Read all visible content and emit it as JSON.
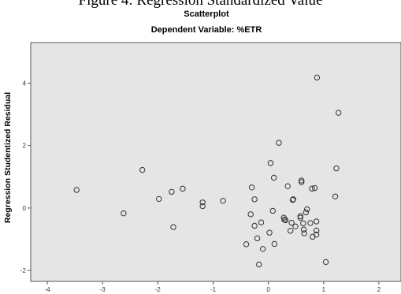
{
  "figure_caption": "Figure 4: Regression Standardized Value",
  "chart_data": {
    "type": "scatter",
    "title": "Scatterplot",
    "subtitle": "Dependent Variable: %ETR",
    "xlabel": "",
    "ylabel": "Regression Studentized Residual",
    "xlim": [
      -4.3,
      2.4
    ],
    "ylim": [
      -2.35,
      5.3
    ],
    "x_ticks": [
      -4,
      -3,
      -2,
      -1,
      0,
      1,
      2
    ],
    "y_ticks": [
      -2,
      0,
      2,
      4
    ],
    "grid": false,
    "colors": {
      "plot_background": "#e5e5e5",
      "marker": "#333333"
    },
    "points": [
      [
        -3.47,
        0.58
      ],
      [
        -2.62,
        -0.17
      ],
      [
        -2.28,
        1.22
      ],
      [
        -1.98,
        0.29
      ],
      [
        -1.75,
        0.52
      ],
      [
        -1.72,
        -0.61
      ],
      [
        -1.55,
        0.62
      ],
      [
        -1.19,
        0.18
      ],
      [
        -1.19,
        0.06
      ],
      [
        -0.82,
        0.23
      ],
      [
        -0.4,
        -1.16
      ],
      [
        -0.32,
        -0.2
      ],
      [
        -0.3,
        0.66
      ],
      [
        -0.25,
        0.28
      ],
      [
        -0.25,
        -0.57
      ],
      [
        -0.2,
        -0.97
      ],
      [
        -0.17,
        -1.81
      ],
      [
        -0.13,
        -0.46
      ],
      [
        -0.1,
        -1.31
      ],
      [
        0.02,
        -0.79
      ],
      [
        0.04,
        1.44
      ],
      [
        0.08,
        -0.09
      ],
      [
        0.1,
        0.97
      ],
      [
        0.11,
        -1.15
      ],
      [
        0.19,
        2.09
      ],
      [
        0.28,
        -0.31
      ],
      [
        0.29,
        -0.37
      ],
      [
        0.31,
        -0.39
      ],
      [
        0.35,
        0.7
      ],
      [
        0.4,
        -0.73
      ],
      [
        0.42,
        -0.47
      ],
      [
        0.44,
        0.26
      ],
      [
        0.45,
        0.28
      ],
      [
        0.49,
        -0.59
      ],
      [
        0.58,
        -0.31
      ],
      [
        0.58,
        -0.26
      ],
      [
        0.6,
        0.83
      ],
      [
        0.6,
        0.88
      ],
      [
        0.63,
        -0.49
      ],
      [
        0.64,
        -0.69
      ],
      [
        0.65,
        -0.81
      ],
      [
        0.68,
        -0.14
      ],
      [
        0.7,
        -0.04
      ],
      [
        0.76,
        -0.48
      ],
      [
        0.79,
        0.62
      ],
      [
        0.8,
        -0.92
      ],
      [
        0.84,
        0.64
      ],
      [
        0.87,
        -0.43
      ],
      [
        0.87,
        -0.85
      ],
      [
        0.87,
        -0.72
      ],
      [
        0.88,
        4.18
      ],
      [
        1.04,
        -1.73
      ],
      [
        1.21,
        0.37
      ],
      [
        1.23,
        1.27
      ],
      [
        1.27,
        3.05
      ]
    ]
  }
}
